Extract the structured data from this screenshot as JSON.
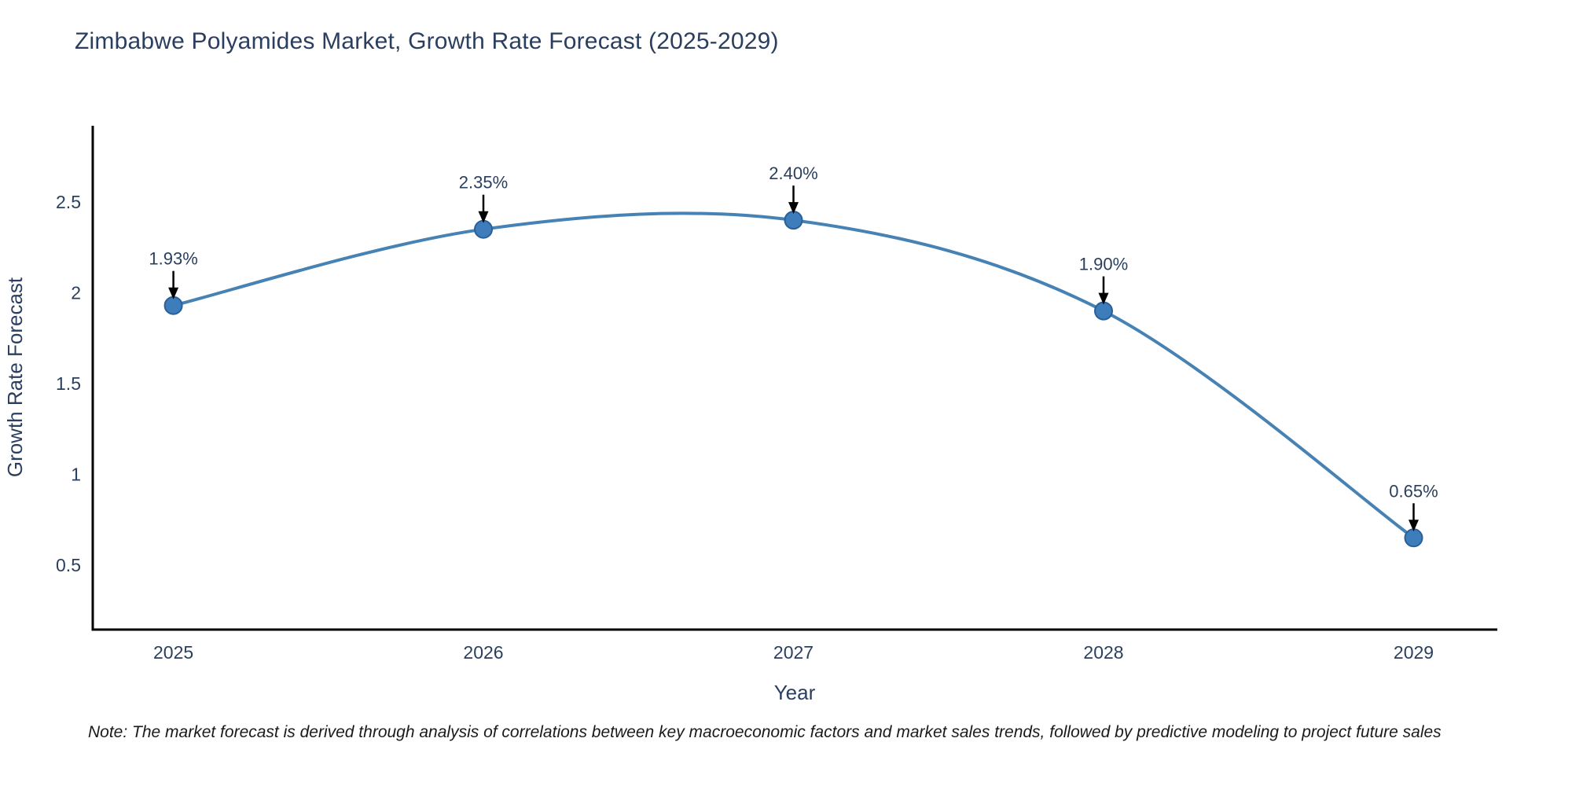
{
  "chart_data": {
    "type": "line",
    "title": "Zimbabwe Polyamides Market, Growth Rate Forecast (2025-2029)",
    "xlabel": "Year",
    "ylabel": "Growth Rate Forecast",
    "x": [
      2025,
      2026,
      2027,
      2028,
      2029
    ],
    "series": [
      {
        "name": "Growth Rate Forecast",
        "values": [
          1.93,
          2.35,
          2.4,
          1.9,
          0.65
        ]
      }
    ],
    "point_labels": [
      "1.93%",
      "2.35%",
      "2.40%",
      "1.90%",
      "0.65%"
    ],
    "xtick_labels": [
      "2025",
      "2026",
      "2027",
      "2028",
      "2029"
    ],
    "yticks": [
      0.5,
      1,
      1.5,
      2,
      2.5
    ],
    "ytick_labels": [
      "0.5",
      "1",
      "1.5",
      "2",
      "2.5"
    ],
    "xlim": [
      2024.74,
      2029.27
    ],
    "ylim": [
      0.145,
      2.92
    ],
    "line_shape": "spline",
    "markers": true,
    "grid": false,
    "legend": "none",
    "colors": {
      "line": "#4682b4",
      "marker_fill": "#3d7dbb",
      "marker_stroke": "#2a6099",
      "axis": "#000000",
      "text": "#2a3f5f",
      "annotation_arrow": "#000000"
    }
  },
  "note": "Note: The market forecast is derived through analysis of correlations between key macroeconomic factors and market sales trends, followed by predictive modeling to project future sales"
}
